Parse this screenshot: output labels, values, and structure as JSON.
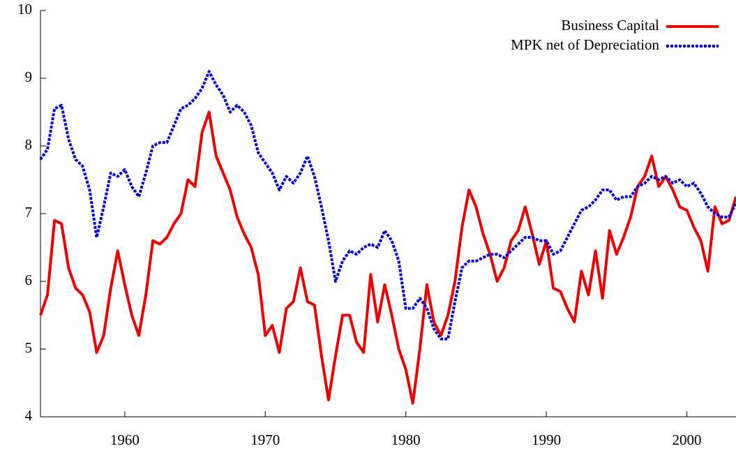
{
  "chart_data": {
    "type": "line",
    "x": [
      1954.0,
      1954.5,
      1955.0,
      1955.5,
      1956.0,
      1956.5,
      1957.0,
      1957.5,
      1958.0,
      1958.5,
      1959.0,
      1959.5,
      1960.0,
      1960.5,
      1961.0,
      1961.5,
      1962.0,
      1962.5,
      1963.0,
      1963.5,
      1964.0,
      1964.5,
      1965.0,
      1965.5,
      1966.0,
      1966.5,
      1967.0,
      1967.5,
      1968.0,
      1968.5,
      1969.0,
      1969.5,
      1970.0,
      1970.5,
      1971.0,
      1971.5,
      1972.0,
      1972.5,
      1973.0,
      1973.5,
      1974.0,
      1974.5,
      1975.0,
      1975.5,
      1976.0,
      1976.5,
      1977.0,
      1977.5,
      1978.0,
      1978.5,
      1979.0,
      1979.5,
      1980.0,
      1980.5,
      1981.0,
      1981.5,
      1982.0,
      1982.5,
      1983.0,
      1983.5,
      1984.0,
      1984.5,
      1985.0,
      1985.5,
      1986.0,
      1986.5,
      1987.0,
      1987.5,
      1988.0,
      1988.5,
      1989.0,
      1989.5,
      1990.0,
      1990.5,
      1991.0,
      1991.5,
      1992.0,
      1992.5,
      1993.0,
      1993.5,
      1994.0,
      1994.5,
      1995.0,
      1995.5,
      1996.0,
      1996.5,
      1997.0,
      1997.5,
      1998.0,
      1998.5,
      1999.0,
      1999.5,
      2000.0,
      2000.5,
      2001.0,
      2001.5,
      2002.0,
      2002.5,
      2003.0,
      2003.5
    ],
    "series": [
      {
        "name": "Business Capital",
        "color": "#ee0000",
        "dashed": false,
        "values": [
          5.5,
          5.8,
          6.9,
          6.85,
          6.2,
          5.9,
          5.8,
          5.55,
          4.95,
          5.2,
          5.9,
          6.45,
          5.95,
          5.5,
          5.2,
          5.8,
          6.6,
          6.55,
          6.65,
          6.85,
          7.0,
          7.5,
          7.4,
          8.2,
          8.5,
          7.85,
          7.6,
          7.35,
          6.95,
          6.7,
          6.5,
          6.1,
          5.2,
          5.35,
          4.95,
          5.6,
          5.7,
          6.2,
          5.7,
          5.65,
          4.9,
          4.25,
          4.9,
          5.5,
          5.5,
          5.1,
          4.95,
          6.1,
          5.4,
          5.95,
          5.5,
          5.0,
          4.7,
          4.2,
          5.0,
          5.95,
          5.4,
          5.2,
          5.5,
          6.0,
          6.8,
          7.35,
          7.1,
          6.7,
          6.4,
          6.0,
          6.2,
          6.6,
          6.75,
          7.1,
          6.7,
          6.25,
          6.6,
          5.9,
          5.85,
          5.6,
          5.4,
          6.15,
          5.8,
          6.45,
          5.75,
          6.75,
          6.4,
          6.65,
          6.95,
          7.4,
          7.55,
          7.85,
          7.4,
          7.55,
          7.35,
          7.1,
          7.05,
          6.8,
          6.6,
          6.15,
          7.1,
          6.85,
          6.9,
          7.25
        ]
      },
      {
        "name": "MPK net of Depreciation",
        "color": "#0000dd",
        "dashed": true,
        "values": [
          7.8,
          7.95,
          8.55,
          8.6,
          8.1,
          7.8,
          7.7,
          7.35,
          6.65,
          7.1,
          7.6,
          7.55,
          7.65,
          7.4,
          7.25,
          7.6,
          8.0,
          8.05,
          8.05,
          8.3,
          8.55,
          8.6,
          8.7,
          8.85,
          9.1,
          8.9,
          8.75,
          8.5,
          8.6,
          8.5,
          8.3,
          7.9,
          7.75,
          7.6,
          7.35,
          7.55,
          7.45,
          7.6,
          7.85,
          7.55,
          7.1,
          6.6,
          6.0,
          6.3,
          6.45,
          6.4,
          6.5,
          6.55,
          6.5,
          6.75,
          6.6,
          6.3,
          5.6,
          5.6,
          5.75,
          5.6,
          5.3,
          5.15,
          5.15,
          5.7,
          6.2,
          6.3,
          6.3,
          6.35,
          6.4,
          6.4,
          6.35,
          6.45,
          6.55,
          6.65,
          6.65,
          6.6,
          6.6,
          6.4,
          6.45,
          6.65,
          6.85,
          7.05,
          7.1,
          7.2,
          7.35,
          7.35,
          7.2,
          7.25,
          7.25,
          7.4,
          7.45,
          7.55,
          7.5,
          7.55,
          7.45,
          7.5,
          7.4,
          7.45,
          7.3,
          7.1,
          7.0,
          6.95,
          6.95,
          7.15
        ]
      }
    ],
    "xlim": [
      1954,
      2003.5
    ],
    "xticks": [
      1960,
      1970,
      1980,
      1990,
      2000
    ],
    "ylim": [
      4,
      10
    ],
    "yticks": [
      4,
      5,
      6,
      7,
      8,
      9,
      10
    ],
    "grid": false,
    "legend": "top-right"
  }
}
